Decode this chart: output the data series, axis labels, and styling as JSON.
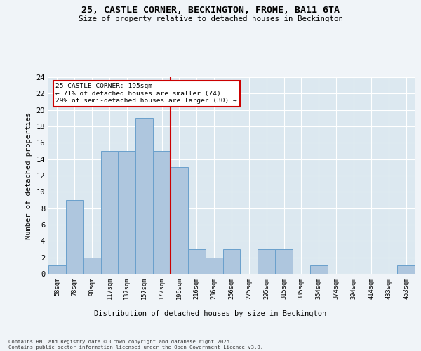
{
  "title": "25, CASTLE CORNER, BECKINGTON, FROME, BA11 6TA",
  "subtitle": "Size of property relative to detached houses in Beckington",
  "xlabel": "Distribution of detached houses by size in Beckington",
  "ylabel": "Number of detached properties",
  "footnote": "Contains HM Land Registry data © Crown copyright and database right 2025.\nContains public sector information licensed under the Open Government Licence v3.0.",
  "bin_labels": [
    "58sqm",
    "78sqm",
    "98sqm",
    "117sqm",
    "137sqm",
    "157sqm",
    "177sqm",
    "196sqm",
    "216sqm",
    "236sqm",
    "256sqm",
    "275sqm",
    "295sqm",
    "315sqm",
    "335sqm",
    "354sqm",
    "374sqm",
    "394sqm",
    "414sqm",
    "433sqm",
    "453sqm"
  ],
  "bar_values": [
    1,
    9,
    2,
    15,
    15,
    19,
    15,
    13,
    3,
    2,
    3,
    0,
    3,
    3,
    0,
    1,
    0,
    0,
    0,
    0,
    1
  ],
  "bar_color": "#aec6de",
  "bar_edge_color": "#6aa0cc",
  "vline_index": 7,
  "annotation_title": "25 CASTLE CORNER: 195sqm",
  "annotation_line1": "← 71% of detached houses are smaller (74)",
  "annotation_line2": "29% of semi-detached houses are larger (30) →",
  "annotation_box_facecolor": "#ffffff",
  "annotation_box_edgecolor": "#cc0000",
  "vline_color": "#cc0000",
  "plot_bg_color": "#dce8f0",
  "fig_bg_color": "#f0f4f8",
  "ylim": [
    0,
    24
  ],
  "yticks": [
    0,
    2,
    4,
    6,
    8,
    10,
    12,
    14,
    16,
    18,
    20,
    22,
    24
  ]
}
